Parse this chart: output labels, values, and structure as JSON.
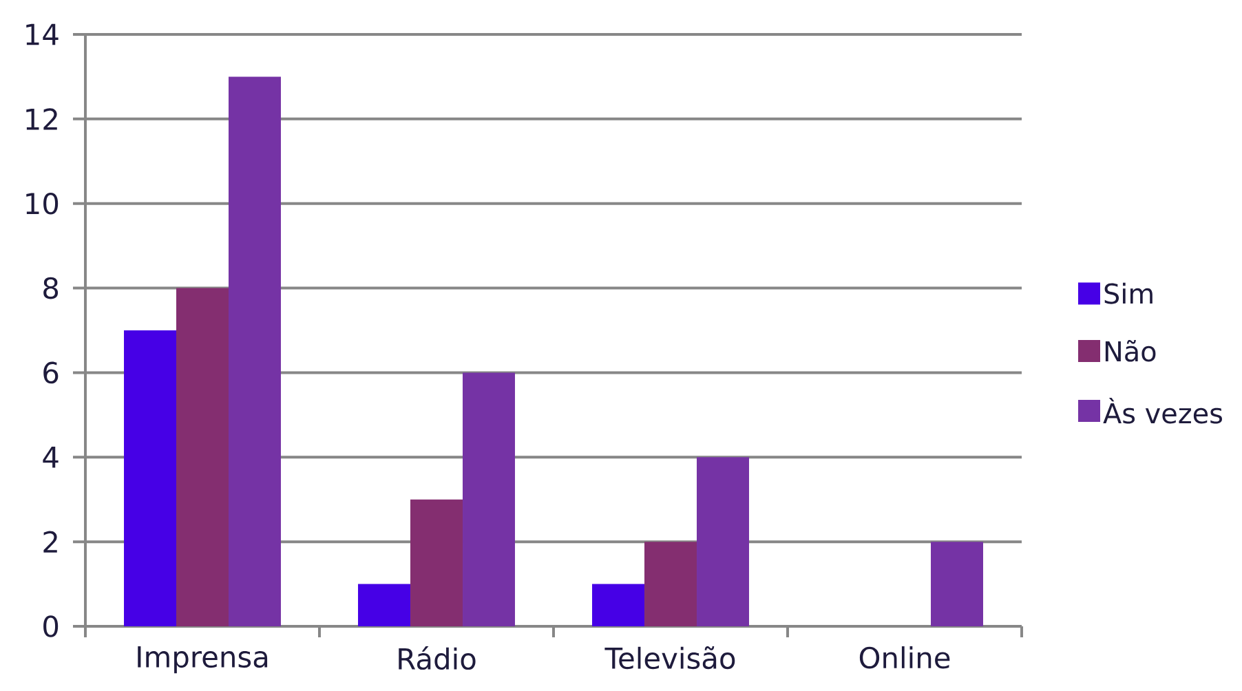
{
  "chart_data": {
    "type": "bar",
    "categories": [
      "Imprensa",
      "Rádio",
      "Televisão",
      "Online"
    ],
    "series": [
      {
        "name": "Sim",
        "color": "#4600e6",
        "values": [
          7,
          1,
          1,
          null
        ]
      },
      {
        "name": "Não",
        "color": "#842e70",
        "values": [
          8,
          3,
          2,
          null
        ]
      },
      {
        "name": "Às vezes",
        "color": "#7533a5",
        "values": [
          13,
          6,
          4,
          2
        ]
      }
    ],
    "ylim": [
      0,
      14
    ],
    "yticks": [
      0,
      2,
      4,
      6,
      8,
      10,
      12,
      14
    ],
    "grid": "y",
    "legend": "right"
  }
}
